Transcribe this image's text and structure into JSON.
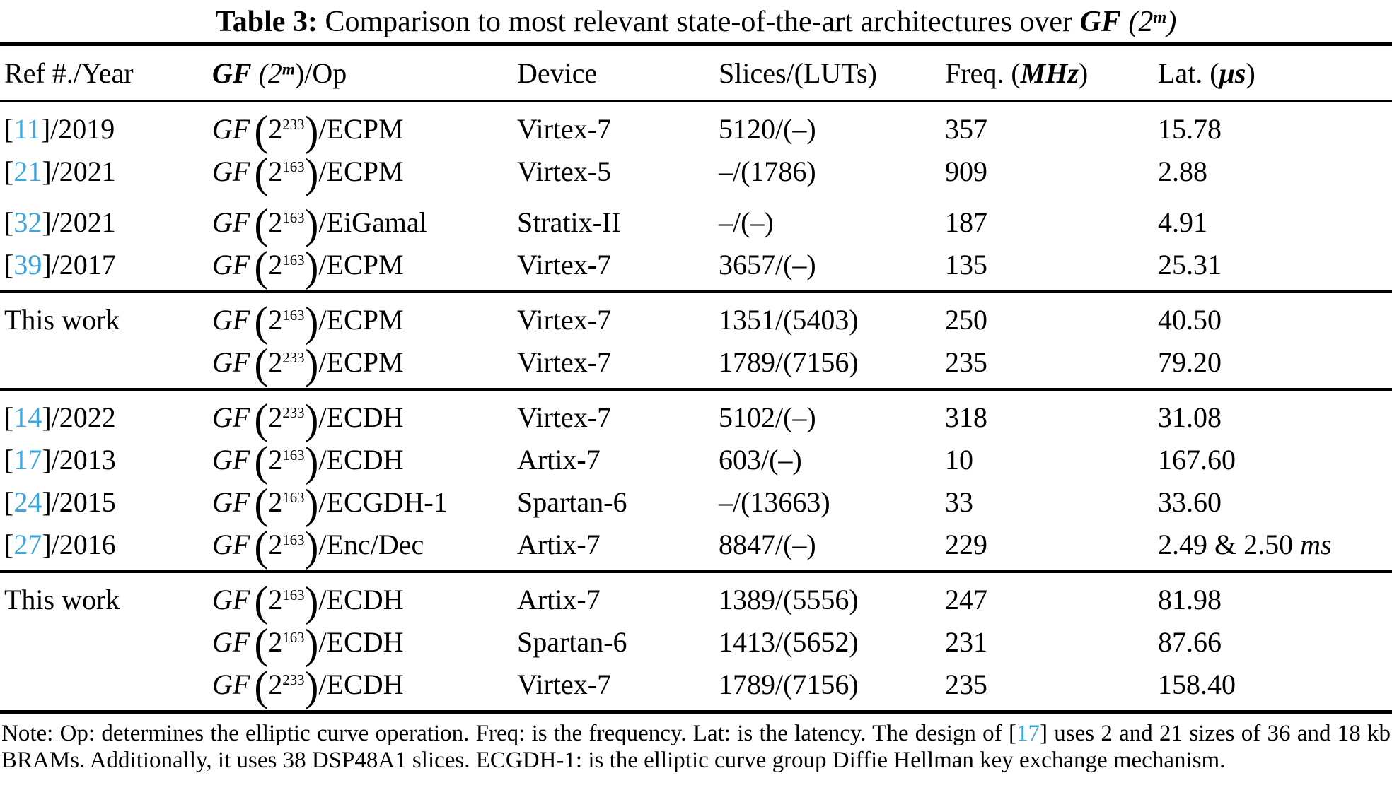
{
  "colors": {
    "citation": "#3DA5DC",
    "text": "#000000",
    "rule": "#000000",
    "background": "#FFFFFF"
  },
  "title": {
    "label": "Table 3:",
    "text": "  Comparison to most relevant state-of-the-art architectures over ",
    "gf": "GF",
    "open": " (2",
    "exp": "m",
    "close": ")"
  },
  "header": {
    "ref": "Ref #./Year",
    "gf": "GF",
    "gf_open": " (2",
    "gf_exp": "m",
    "gf_close": ")/Op",
    "device": "Device",
    "slices": "Slices/(LUTs)",
    "freq_pre": "Freq. (",
    "freq_unit": "MHz",
    "freq_post": ")",
    "lat_pre": "Lat. (",
    "lat_unit": "μs",
    "lat_post": ")"
  },
  "gf_shared": {
    "label": "GF",
    "open": "(",
    "base": "2",
    "close": ")"
  },
  "rows": [
    {
      "ref_pre": "[",
      "cite": "11",
      "ref_post": "]/2019",
      "exp": "233",
      "op": "/ECPM",
      "device": "Virtex-7",
      "slices": "5120/(–)",
      "freq": "357",
      "lat": "15.78",
      "lat_unit": ""
    },
    {
      "ref_pre": "[",
      "cite": "21",
      "ref_post": "]/2021",
      "exp": "163",
      "op": "/ECPM",
      "device": "Virtex-5",
      "slices": "–/(1786)",
      "freq": "909",
      "lat": "2.88",
      "lat_unit": ""
    },
    {
      "ref_pre": "[",
      "cite": "32",
      "ref_post": "]/2021",
      "exp": "163",
      "op": "/EiGamal",
      "device": "Stratix-II",
      "slices": "–/(–)",
      "freq": "187",
      "lat": "4.91",
      "lat_unit": ""
    },
    {
      "ref_pre": "[",
      "cite": "39",
      "ref_post": "]/2017",
      "exp": "163",
      "op": "/ECPM",
      "device": "Virtex-7",
      "slices": "3657/(–)",
      "freq": "135",
      "lat": "25.31",
      "lat_unit": ""
    },
    {
      "ref_pre": "This work",
      "cite": "",
      "ref_post": "",
      "exp": "163",
      "op": "/ECPM",
      "device": "Virtex-7",
      "slices": "1351/(5403)",
      "freq": "250",
      "lat": "40.50",
      "lat_unit": ""
    },
    {
      "ref_pre": "",
      "cite": "",
      "ref_post": "",
      "exp": "233",
      "op": "/ECPM",
      "device": "Virtex-7",
      "slices": "1789/(7156)",
      "freq": "235",
      "lat": "79.20",
      "lat_unit": ""
    },
    {
      "ref_pre": "[",
      "cite": "14",
      "ref_post": "]/2022",
      "exp": "233",
      "op": "/ECDH",
      "device": "Virtex-7",
      "slices": "5102/(–)",
      "freq": "318",
      "lat": "31.08",
      "lat_unit": ""
    },
    {
      "ref_pre": "[",
      "cite": "17",
      "ref_post": "]/2013",
      "exp": "163",
      "op": "/ECDH",
      "device": "Artix-7",
      "slices": "603/(–)",
      "freq": "10",
      "lat": "167.60",
      "lat_unit": ""
    },
    {
      "ref_pre": "[",
      "cite": "24",
      "ref_post": "]/2015",
      "exp": "163",
      "op": "/ECGDH-1",
      "device": "Spartan-6",
      "slices": "–/(13663)",
      "freq": "33",
      "lat": "33.60",
      "lat_unit": ""
    },
    {
      "ref_pre": "[",
      "cite": "27",
      "ref_post": "]/2016",
      "exp": "163",
      "op": "/Enc/Dec",
      "device": "Artix-7",
      "slices": "8847/(–)",
      "freq": "229",
      "lat": "2.49 & 2.50 ",
      "lat_unit": "ms"
    },
    {
      "ref_pre": "This work",
      "cite": "",
      "ref_post": "",
      "exp": "163",
      "op": "/ECDH",
      "device": "Artix-7",
      "slices": "1389/(5556)",
      "freq": "247",
      "lat": "81.98",
      "lat_unit": ""
    },
    {
      "ref_pre": "",
      "cite": "",
      "ref_post": "",
      "exp": "163",
      "op": "/ECDH",
      "device": "Spartan-6",
      "slices": "1413/(5652)",
      "freq": "231",
      "lat": "87.66",
      "lat_unit": ""
    },
    {
      "ref_pre": "",
      "cite": "",
      "ref_post": "",
      "exp": "233",
      "op": "/ECDH",
      "device": "Virtex-7",
      "slices": "1789/(7156)",
      "freq": "235",
      "lat": "158.40",
      "lat_unit": ""
    }
  ],
  "note": {
    "part1": "Note: Op: determines the elliptic curve operation. Freq: is the frequency. Lat: is the latency. The design of [",
    "cite": "17",
    "part2": "] uses 2 and 21 sizes of 36 and 18 kb BRAMs. Additionally, it uses 38 DSP48A1 slices. ECGDH-1: is the elliptic curve group Diffie Hellman key exchange mechanism."
  }
}
